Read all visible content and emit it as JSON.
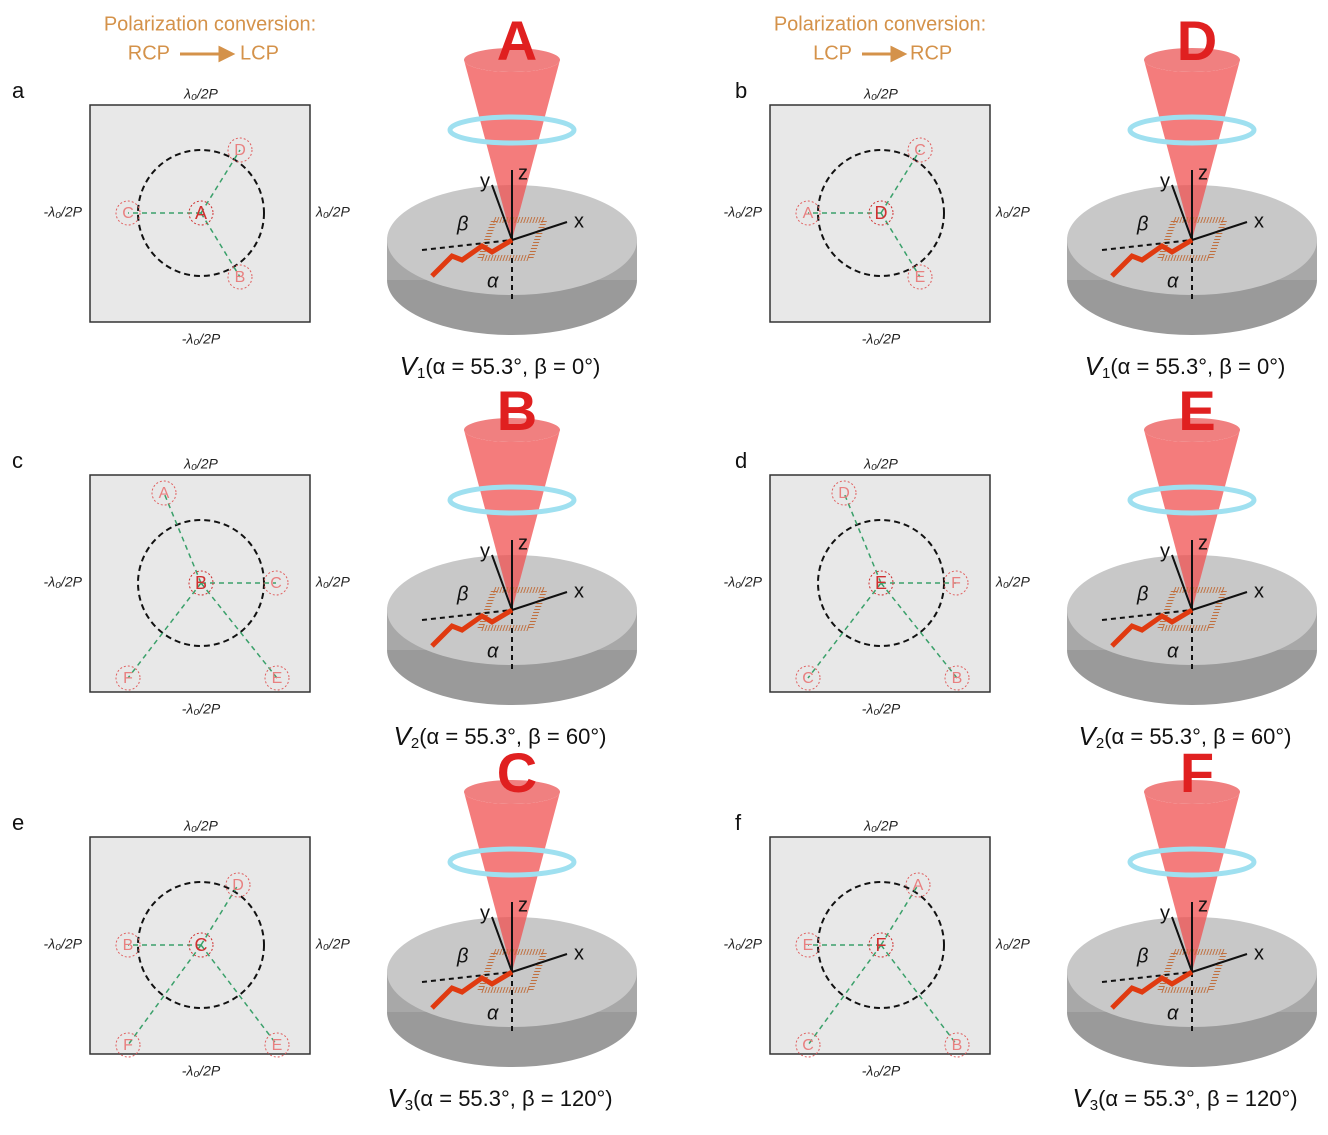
{
  "columns": [
    {
      "header": "Polarization conversion:",
      "from": "RCP",
      "to": "LCP"
    },
    {
      "header": "Polarization conversion:",
      "from": "LCP",
      "to": "RCP"
    }
  ],
  "axis_names": {
    "x": "x",
    "y": "y",
    "z": "z"
  },
  "angle_names": {
    "alpha": "α",
    "beta": "β"
  },
  "panels": [
    {
      "label": "a",
      "top": "λ₀/2P",
      "bottom": "-λ₀/2P",
      "left": "-λ₀/2P",
      "right": "λ₀/2P",
      "center": "A",
      "neighbors": [
        "D",
        "B",
        "C"
      ],
      "beam_letter": "A",
      "caption": {
        "symbol": "V",
        "index": "1",
        "params": "(α = 55.3°, β = 0°)"
      }
    },
    {
      "label": "b",
      "top": "λ₀/2P",
      "bottom": "-λ₀/2P",
      "left": "-λ₀/2P",
      "right": "λ₀/2P",
      "center": "D",
      "neighbors": [
        "C",
        "E",
        "A"
      ],
      "beam_letter": "D",
      "caption": {
        "symbol": "V",
        "index": "1",
        "params": "(α = 55.3°, β = 0°)"
      }
    },
    {
      "label": "c",
      "top": "λ₀/2P",
      "bottom": "-λ₀/2P",
      "left": "-λ₀/2P",
      "right": "λ₀/2P",
      "center": "B",
      "neighbors": [
        "A",
        "C",
        "F",
        "E"
      ],
      "beam_letter": "B",
      "caption": {
        "symbol": "V",
        "index": "2",
        "params": "(α = 55.3°, β = 60°)"
      }
    },
    {
      "label": "d",
      "top": "λ₀/2P",
      "bottom": "-λ₀/2P",
      "left": "-λ₀/2P",
      "right": "λ₀/2P",
      "center": "E",
      "neighbors": [
        "D",
        "F",
        "C",
        "B"
      ],
      "beam_letter": "E",
      "caption": {
        "symbol": "V",
        "index": "2",
        "params": "(α = 55.3°, β = 60°)"
      }
    },
    {
      "label": "e",
      "top": "λ₀/2P",
      "bottom": "-λ₀/2P",
      "left": "-λ₀/2P",
      "right": "λ₀/2P",
      "center": "C",
      "neighbors": [
        "B",
        "D",
        "F",
        "E"
      ],
      "beam_letter": "C",
      "caption": {
        "symbol": "V",
        "index": "3",
        "params": "(α = 55.3°, β = 120°)"
      }
    },
    {
      "label": "f",
      "top": "λ₀/2P",
      "bottom": "-λ₀/2P",
      "left": "-λ₀/2P",
      "right": "λ₀/2P",
      "center": "F",
      "neighbors": [
        "E",
        "A",
        "C",
        "B"
      ],
      "beam_letter": "F",
      "caption": {
        "symbol": "V",
        "index": "3",
        "params": "(α = 55.3°, β = 120°)"
      }
    }
  ]
}
